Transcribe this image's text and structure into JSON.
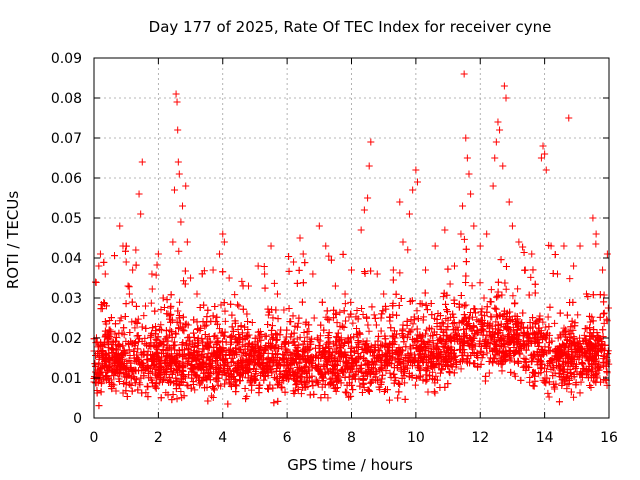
{
  "chart_data": {
    "type": "scatter",
    "title": "Day 177 of 2025, Rate Of TEC Index for receiver cyne",
    "xlabel": "GPS time / hours",
    "ylabel": "ROTI / TECUs",
    "xlim": [
      0,
      16
    ],
    "ylim": [
      0,
      0.09
    ],
    "x_ticks": [
      "0",
      "2",
      "4",
      "6",
      "8",
      "10",
      "12",
      "14",
      "16"
    ],
    "y_ticks": [
      "0",
      "0.01",
      "0.02",
      "0.03",
      "0.04",
      "0.05",
      "0.06",
      "0.07",
      "0.08",
      "0.09"
    ],
    "x_tick_values": [
      0,
      2,
      4,
      6,
      8,
      10,
      12,
      14,
      16
    ],
    "y_tick_values": [
      0,
      0.01,
      0.02,
      0.03,
      0.04,
      0.05,
      0.06,
      0.07,
      0.08,
      0.09
    ],
    "grid": true,
    "marker": "+",
    "point_color": "#ff0000",
    "series": [
      {
        "name": "ROTI",
        "points": [
          [
            0.0,
            0.009
          ],
          [
            0.05,
            0.034
          ],
          [
            0.1,
            0.012
          ],
          [
            0.15,
            0.038
          ],
          [
            0.2,
            0.041
          ],
          [
            0.25,
            0.015
          ],
          [
            0.35,
            0.036
          ],
          [
            0.5,
            0.022
          ],
          [
            0.7,
            0.017
          ],
          [
            0.8,
            0.048
          ],
          [
            0.9,
            0.043
          ],
          [
            1.0,
            0.039
          ],
          [
            1.1,
            0.031
          ],
          [
            1.2,
            0.037
          ],
          [
            1.3,
            0.042
          ],
          [
            1.4,
            0.056
          ],
          [
            1.45,
            0.051
          ],
          [
            1.5,
            0.064
          ],
          [
            1.6,
            0.028
          ],
          [
            1.8,
            0.036
          ],
          [
            2.0,
            0.041
          ],
          [
            2.1,
            0.022
          ],
          [
            2.3,
            0.026
          ],
          [
            2.45,
            0.044
          ],
          [
            2.5,
            0.057
          ],
          [
            2.55,
            0.081
          ],
          [
            2.58,
            0.079
          ],
          [
            2.6,
            0.072
          ],
          [
            2.62,
            0.064
          ],
          [
            2.65,
            0.061
          ],
          [
            2.7,
            0.049
          ],
          [
            2.75,
            0.053
          ],
          [
            2.85,
            0.058
          ],
          [
            2.9,
            0.044
          ],
          [
            3.0,
            0.035
          ],
          [
            3.2,
            0.031
          ],
          [
            3.5,
            0.024
          ],
          [
            3.7,
            0.037
          ],
          [
            3.9,
            0.041
          ],
          [
            4.0,
            0.046
          ],
          [
            4.05,
            0.044
          ],
          [
            4.2,
            0.035
          ],
          [
            4.5,
            0.028
          ],
          [
            4.8,
            0.033
          ],
          [
            5.1,
            0.038
          ],
          [
            5.3,
            0.036
          ],
          [
            5.5,
            0.043
          ],
          [
            5.7,
            0.031
          ],
          [
            5.9,
            0.027
          ],
          [
            6.2,
            0.039
          ],
          [
            6.4,
            0.045
          ],
          [
            6.5,
            0.041
          ],
          [
            6.8,
            0.036
          ],
          [
            7.0,
            0.048
          ],
          [
            7.2,
            0.043
          ],
          [
            7.5,
            0.033
          ],
          [
            7.8,
            0.031
          ],
          [
            8.0,
            0.037
          ],
          [
            8.3,
            0.047
          ],
          [
            8.4,
            0.052
          ],
          [
            8.5,
            0.055
          ],
          [
            8.55,
            0.063
          ],
          [
            8.6,
            0.069
          ],
          [
            8.8,
            0.036
          ],
          [
            9.0,
            0.031
          ],
          [
            9.3,
            0.037
          ],
          [
            9.5,
            0.054
          ],
          [
            9.6,
            0.044
          ],
          [
            9.8,
            0.051
          ],
          [
            9.9,
            0.057
          ],
          [
            10.0,
            0.062
          ],
          [
            10.05,
            0.059
          ],
          [
            10.3,
            0.037
          ],
          [
            10.6,
            0.043
          ],
          [
            10.9,
            0.047
          ],
          [
            11.2,
            0.038
          ],
          [
            11.4,
            0.046
          ],
          [
            11.45,
            0.053
          ],
          [
            11.5,
            0.086
          ],
          [
            11.55,
            0.07
          ],
          [
            11.6,
            0.065
          ],
          [
            11.65,
            0.061
          ],
          [
            11.7,
            0.056
          ],
          [
            11.8,
            0.048
          ],
          [
            12.0,
            0.043
          ],
          [
            12.2,
            0.046
          ],
          [
            12.4,
            0.058
          ],
          [
            12.45,
            0.065
          ],
          [
            12.5,
            0.069
          ],
          [
            12.55,
            0.074
          ],
          [
            12.6,
            0.072
          ],
          [
            12.7,
            0.063
          ],
          [
            12.75,
            0.083
          ],
          [
            12.8,
            0.08
          ],
          [
            12.9,
            0.054
          ],
          [
            13.0,
            0.048
          ],
          [
            13.2,
            0.044
          ],
          [
            13.4,
            0.037
          ],
          [
            13.6,
            0.041
          ],
          [
            13.9,
            0.065
          ],
          [
            13.95,
            0.068
          ],
          [
            14.0,
            0.066
          ],
          [
            14.05,
            0.062
          ],
          [
            14.2,
            0.043
          ],
          [
            14.4,
            0.036
          ],
          [
            14.6,
            0.043
          ],
          [
            14.75,
            0.075
          ],
          [
            14.9,
            0.038
          ],
          [
            15.1,
            0.043
          ],
          [
            15.3,
            0.031
          ],
          [
            15.5,
            0.05
          ],
          [
            15.6,
            0.046
          ],
          [
            15.8,
            0.037
          ],
          [
            15.95,
            0.041
          ]
        ]
      }
    ]
  }
}
